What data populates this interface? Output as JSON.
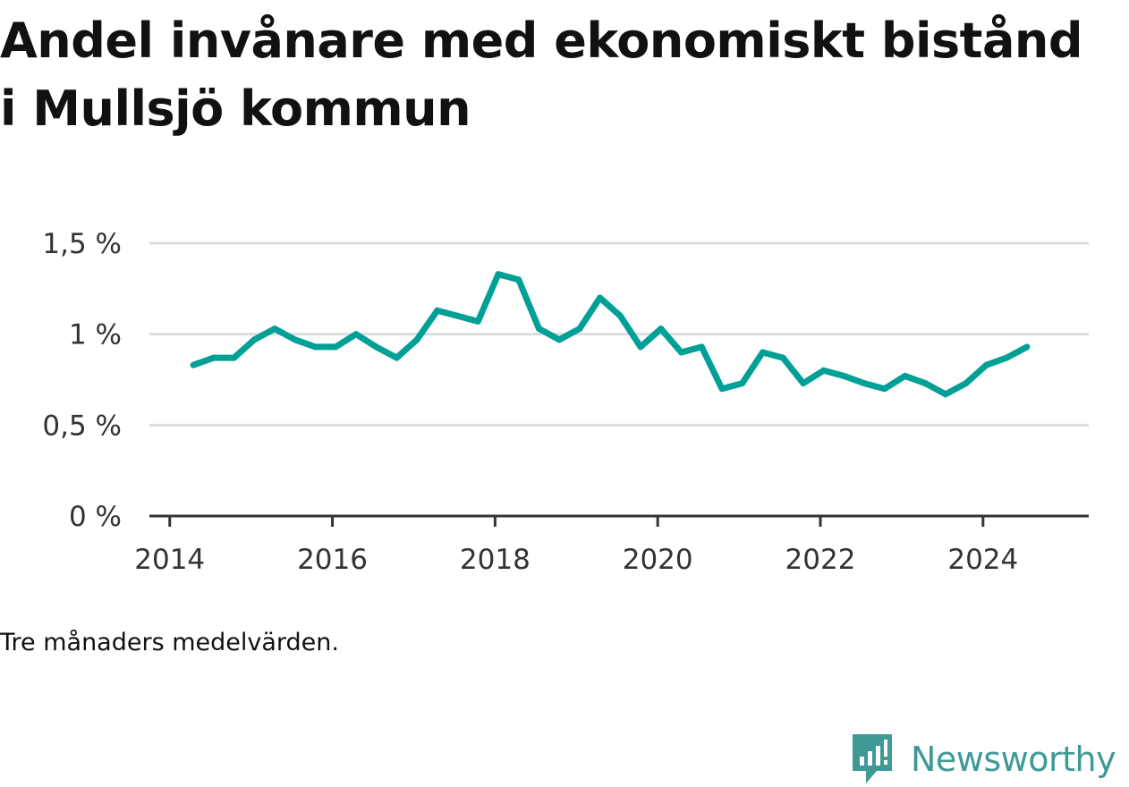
{
  "title": "Andel invånare med ekonomiskt bistånd i Mullsjö kommun",
  "note": "Tre månaders medelvärden.",
  "brand": {
    "name": "Newsworthy",
    "icon": "newsworthy-logo-icon"
  },
  "colors": {
    "line": "#00a096",
    "grid": "#dddddd",
    "axis": "#333333",
    "brand": "#3f9a96"
  },
  "chart_data": {
    "type": "line",
    "title": "Andel invånare med ekonomiskt bistånd i Mullsjö kommun",
    "xlabel": "",
    "ylabel": "",
    "xlim": [
      2013.75,
      2025.3
    ],
    "ylim": [
      0,
      1.5
    ],
    "x_ticks": [
      {
        "value": 2014,
        "label": "2014"
      },
      {
        "value": 2016,
        "label": "2016"
      },
      {
        "value": 2018,
        "label": "2018"
      },
      {
        "value": 2020,
        "label": "2020"
      },
      {
        "value": 2022,
        "label": "2022"
      },
      {
        "value": 2024,
        "label": "2024"
      }
    ],
    "y_ticks": [
      {
        "value": 0,
        "label": "0 %"
      },
      {
        "value": 0.5,
        "label": "0,5 %"
      },
      {
        "value": 1,
        "label": "1 %"
      },
      {
        "value": 1.5,
        "label": "1,5 %"
      }
    ],
    "grid": true,
    "series": [
      {
        "name": "Andel invånare med ekonomiskt bistånd",
        "x": [
          2014.29,
          2014.54,
          2014.79,
          2015.04,
          2015.29,
          2015.54,
          2015.79,
          2016.04,
          2016.29,
          2016.54,
          2016.79,
          2017.04,
          2017.29,
          2017.54,
          2017.79,
          2018.04,
          2018.29,
          2018.54,
          2018.79,
          2019.04,
          2019.29,
          2019.54,
          2019.79,
          2020.04,
          2020.29,
          2020.54,
          2020.79,
          2021.04,
          2021.29,
          2021.54,
          2021.79,
          2022.04,
          2022.29,
          2022.54,
          2022.79,
          2023.04,
          2023.29,
          2023.54,
          2023.79,
          2024.04,
          2024.29,
          2024.54
        ],
        "values": [
          0.83,
          0.87,
          0.87,
          0.97,
          1.03,
          0.97,
          0.93,
          0.93,
          1.0,
          0.93,
          0.87,
          0.97,
          1.13,
          1.1,
          1.07,
          1.33,
          1.3,
          1.03,
          0.97,
          1.03,
          1.2,
          1.1,
          0.93,
          1.03,
          0.9,
          0.93,
          0.7,
          0.73,
          0.9,
          0.87,
          0.73,
          0.8,
          0.77,
          0.73,
          0.7,
          0.77,
          0.73,
          0.67,
          0.73,
          0.83,
          0.87,
          0.93
        ]
      }
    ]
  }
}
